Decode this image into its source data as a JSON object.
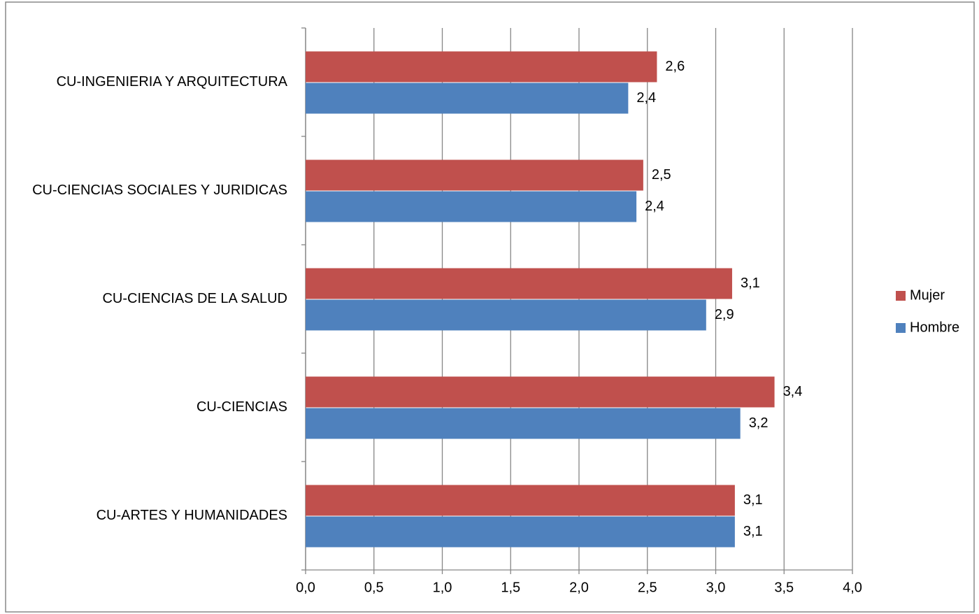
{
  "chart_data": {
    "type": "bar",
    "orientation": "horizontal",
    "categories": [
      "CU-INGENIERIA Y ARQUITECTURA",
      "CU-CIENCIAS SOCIALES Y JURIDICAS",
      "CU-CIENCIAS DE LA SALUD",
      "CU-CIENCIAS",
      "CU-ARTES Y HUMANIDADES"
    ],
    "series": [
      {
        "name": "Mujer",
        "color": "#c0504d",
        "label_color": "#c00000",
        "values": [
          2.57,
          2.47,
          3.12,
          3.43,
          3.14
        ],
        "value_labels": [
          "2,6",
          "2,5",
          "3,1",
          "3,4",
          "3,1"
        ]
      },
      {
        "name": "Hombre",
        "color": "#4f81bd",
        "label_color": "#0070c0",
        "values": [
          2.36,
          2.42,
          2.93,
          3.18,
          3.14
        ],
        "value_labels": [
          "2,4",
          "2,4",
          "2,9",
          "3,2",
          "3,1"
        ]
      }
    ],
    "xlim": [
      0,
      4
    ],
    "xticks": [
      {
        "value": 0,
        "label": "0,0"
      },
      {
        "value": 0.5,
        "label": "0,5"
      },
      {
        "value": 1,
        "label": "1,0"
      },
      {
        "value": 1.5,
        "label": "1,5"
      },
      {
        "value": 2,
        "label": "2,0"
      },
      {
        "value": 2.5,
        "label": "2,5"
      },
      {
        "value": 3,
        "label": "3,0"
      },
      {
        "value": 3.5,
        "label": "3,5"
      },
      {
        "value": 4,
        "label": "4,0"
      }
    ],
    "grid": true,
    "legend": "right"
  }
}
